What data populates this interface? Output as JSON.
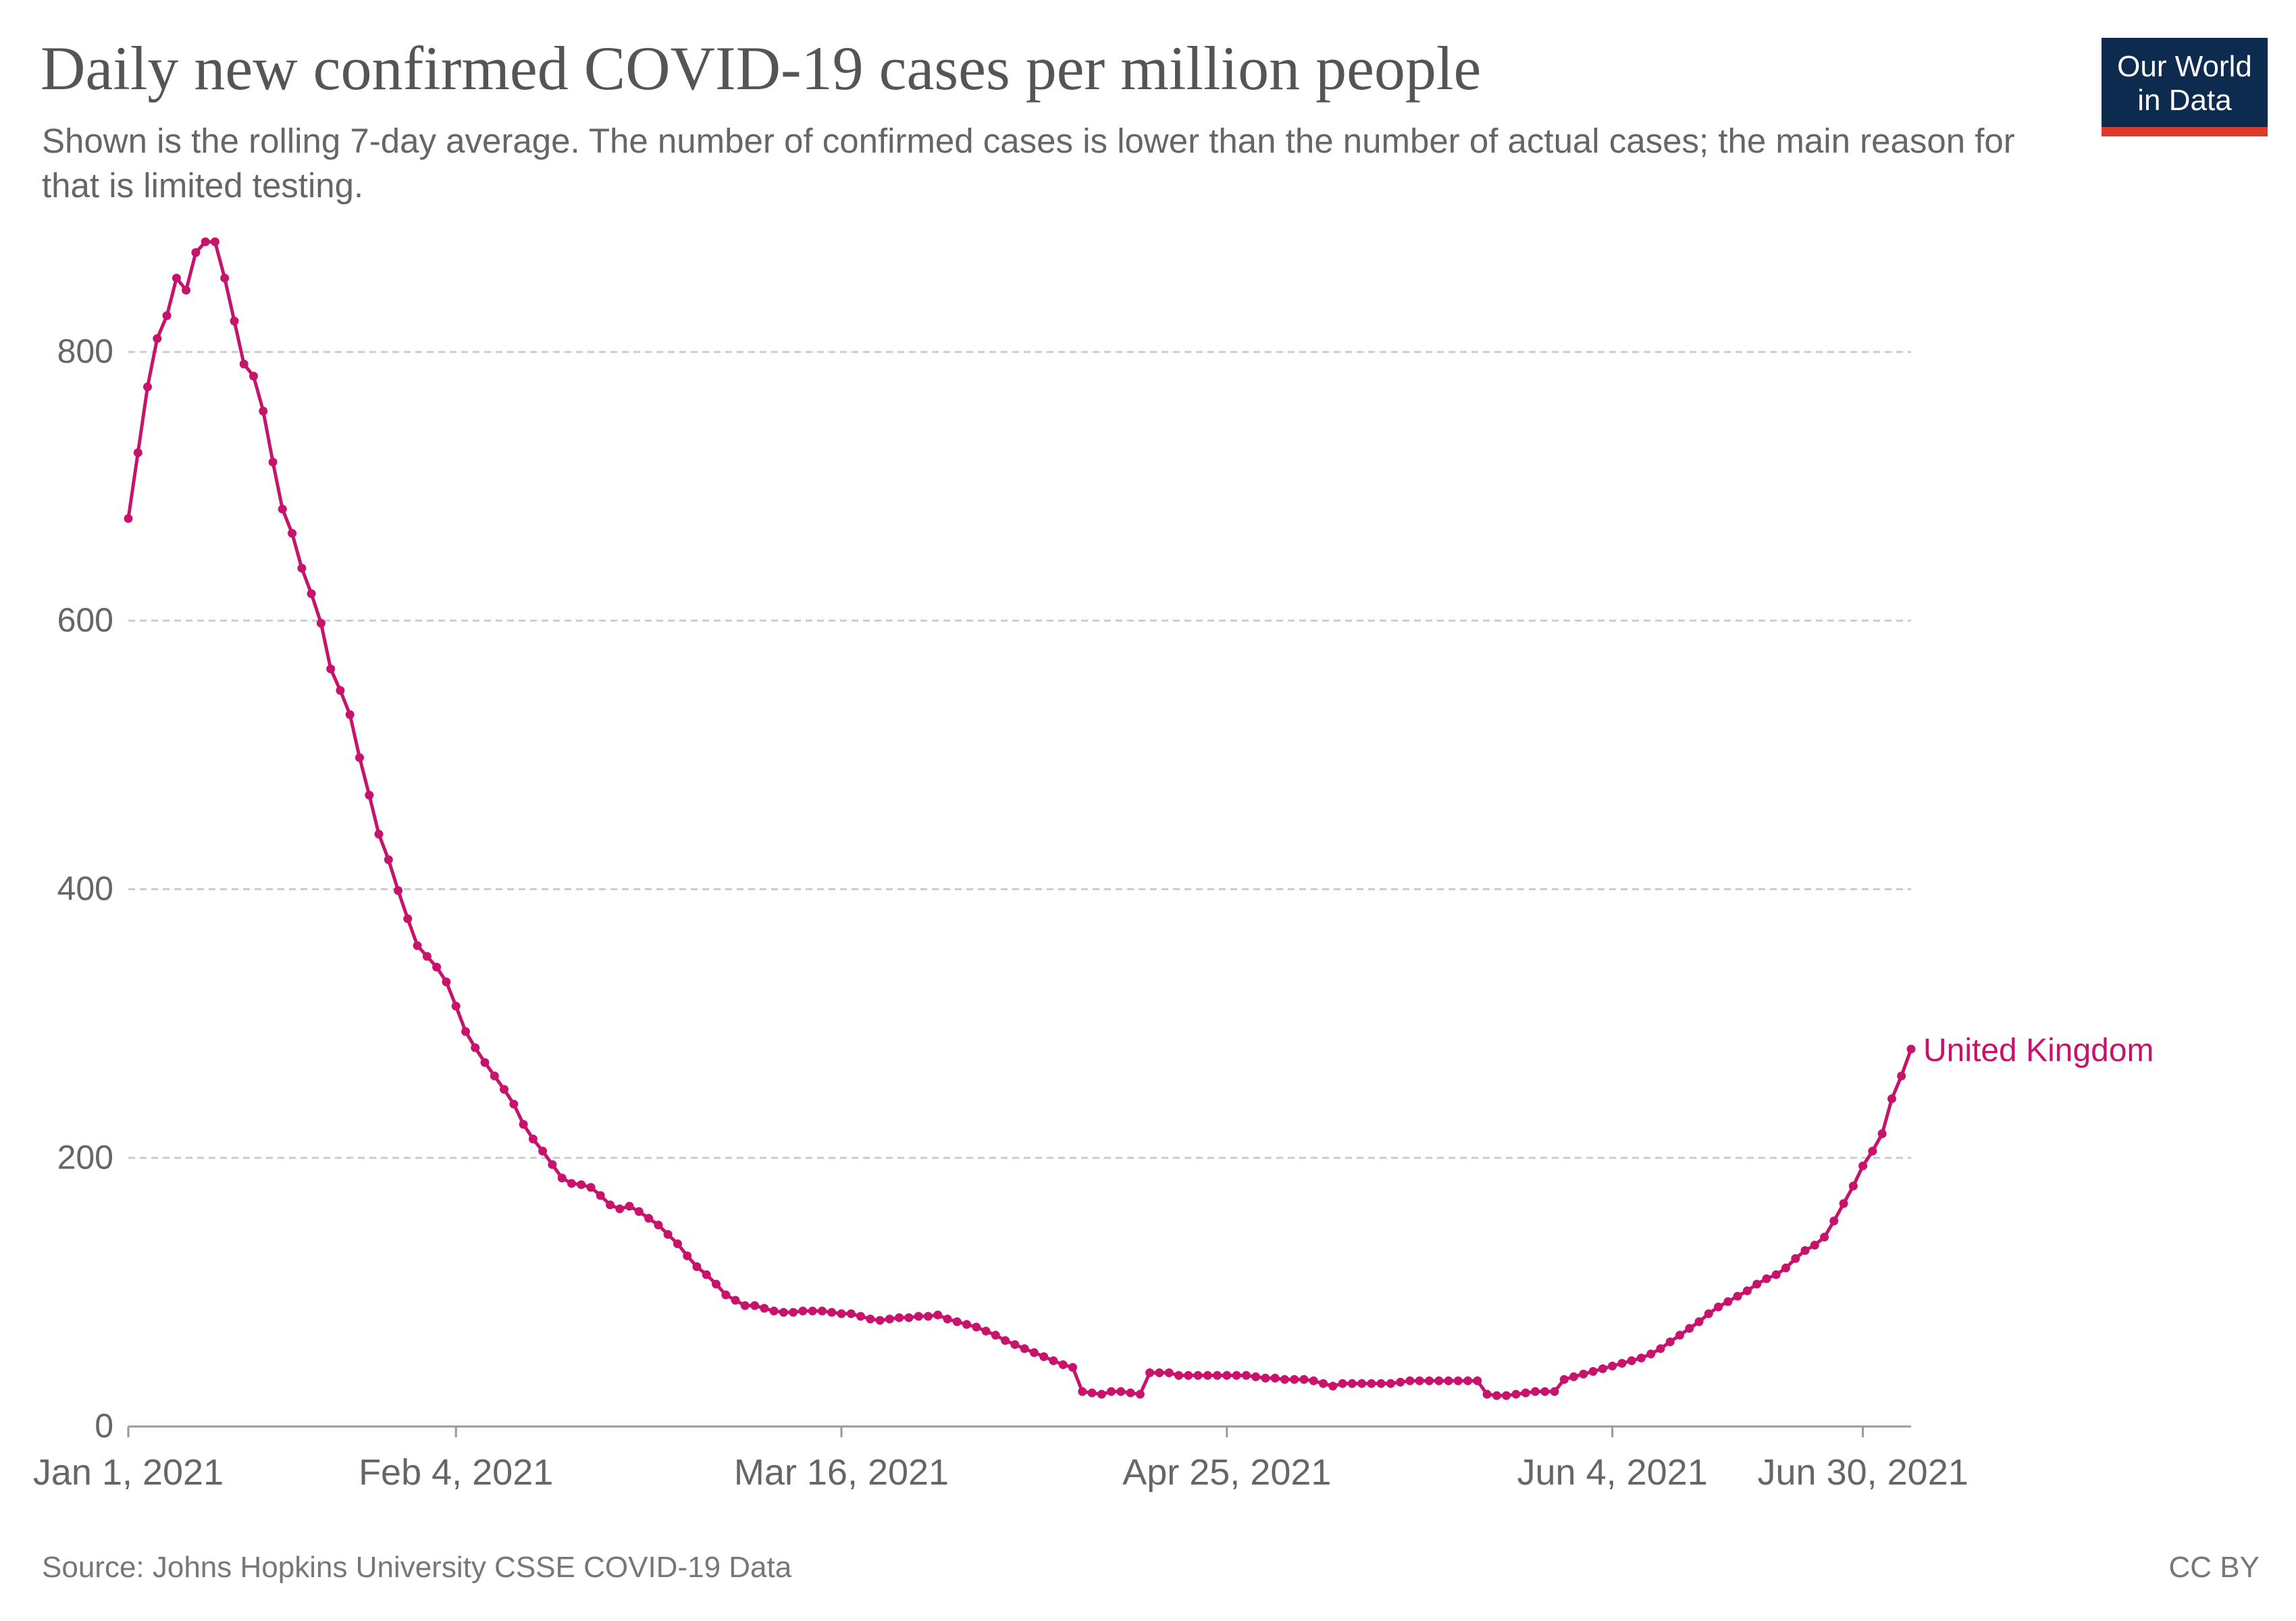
{
  "header": {
    "title": "Daily new confirmed COVID-19 cases per million people",
    "subtitle": "Shown is the rolling 7-day average. The number of confirmed cases is lower than the number of actual cases; the main reason for that is limited testing.",
    "logo_line1": "Our World",
    "logo_line2": "in Data"
  },
  "footer": {
    "source": "Source: Johns Hopkins University CSSE COVID-19 Data",
    "license": "CC BY"
  },
  "colors": {
    "series": "#c7136b",
    "grid": "#cccccc",
    "axis_text": "#666666",
    "logo_bg": "#0d2a4f",
    "logo_accent": "#dc3a2b"
  },
  "chart_data": {
    "type": "line",
    "title": "Daily new confirmed COVID-19 cases per million people",
    "xlabel": "",
    "ylabel": "",
    "ylim": [
      0,
      880
    ],
    "yticks": [
      0,
      200,
      400,
      600,
      800
    ],
    "grid": true,
    "x_start": "2021-01-01",
    "xticks": [
      {
        "label": "Jan 1, 2021",
        "date": "2021-01-01"
      },
      {
        "label": "Feb 4, 2021",
        "date": "2021-02-04"
      },
      {
        "label": "Mar 16, 2021",
        "date": "2021-03-16"
      },
      {
        "label": "Apr 25, 2021",
        "date": "2021-04-25"
      },
      {
        "label": "Jun 4, 2021",
        "date": "2021-06-04"
      },
      {
        "label": "Jun 30, 2021",
        "date": "2021-06-30"
      }
    ],
    "series": [
      {
        "name": "United Kingdom",
        "color": "#c7136b",
        "values": [
          676,
          725,
          774,
          810,
          827,
          855,
          846,
          874,
          882,
          882,
          855,
          823,
          791,
          782,
          756,
          718,
          683,
          665,
          639,
          620,
          598,
          564,
          548,
          530,
          498,
          470,
          441,
          422,
          399,
          378,
          358,
          350,
          342,
          331,
          313,
          294,
          282,
          271,
          261,
          251,
          240,
          225,
          214,
          205,
          195,
          185,
          181,
          180,
          178,
          172,
          165,
          162,
          164,
          160,
          155,
          150,
          143,
          136,
          127,
          119,
          113,
          106,
          98,
          94,
          90,
          90,
          88,
          86,
          85,
          85,
          86,
          86,
          86,
          85,
          84,
          84,
          82,
          80,
          79,
          80,
          81,
          81,
          82,
          82,
          83,
          80,
          78,
          76,
          74,
          71,
          68,
          64,
          61,
          58,
          55,
          52,
          49,
          46,
          44,
          26,
          25,
          24,
          26,
          26,
          25,
          24,
          40,
          40,
          40,
          38,
          38,
          38,
          38,
          38,
          38,
          38,
          38,
          37,
          36,
          36,
          35,
          35,
          35,
          34,
          32,
          30,
          32,
          32,
          32,
          32,
          32,
          32,
          33,
          34,
          34,
          34,
          34,
          34,
          34,
          34,
          34,
          24,
          23,
          23,
          24,
          25,
          26,
          26,
          26,
          35,
          37,
          39,
          41,
          43,
          45,
          47,
          49,
          51,
          54,
          58,
          63,
          68,
          73,
          78,
          84,
          89,
          93,
          97,
          101,
          106,
          110,
          113,
          118,
          125,
          131,
          135,
          141,
          153,
          166,
          179,
          194,
          205,
          218,
          244,
          261,
          281
        ]
      }
    ]
  }
}
